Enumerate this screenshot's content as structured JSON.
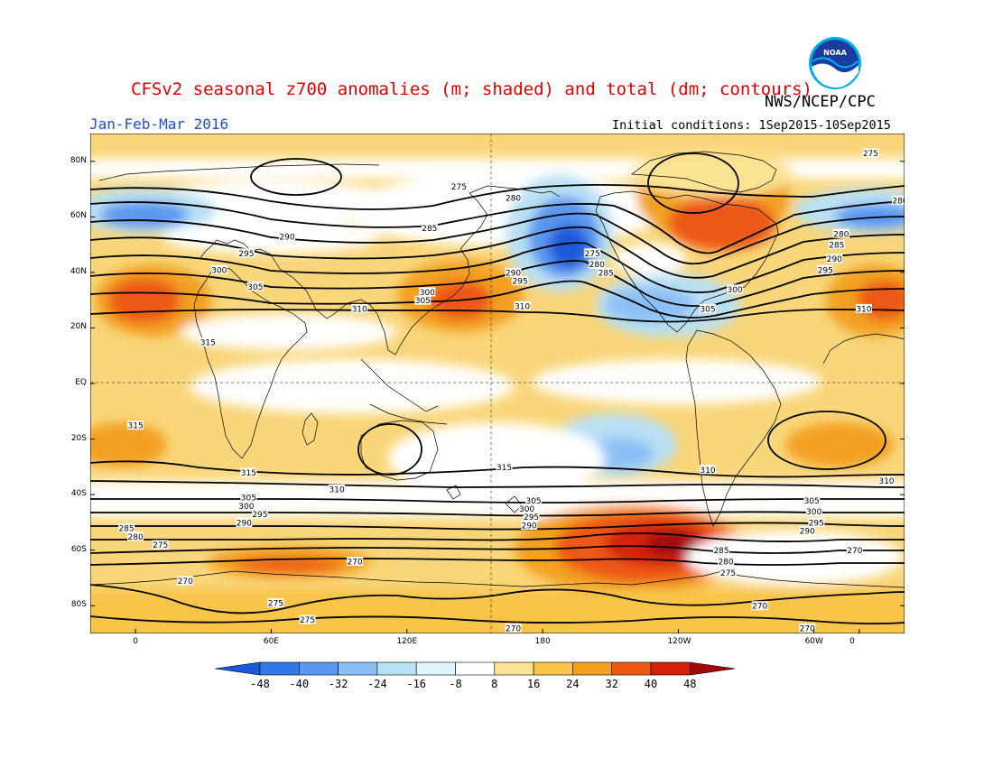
{
  "header": {
    "title": "CFSv2 seasonal z700 anomalies (m; shaded) and total (dm; contours)",
    "agency": "NWS/NCEP/CPC",
    "period": "Jan-Feb-Mar 2016",
    "initial_conditions": "Initial conditions: 1Sep2015-10Sep2015",
    "logo_text": "NOAA"
  },
  "map": {
    "lat_labels": [
      "80N",
      "60N",
      "40N",
      "20N",
      "EQ",
      "20S",
      "40S",
      "60S",
      "80S"
    ],
    "lon_labels": [
      "0",
      "60E",
      "120E",
      "180",
      "120W",
      "60W",
      "0"
    ],
    "contour_labels": [
      {
        "text": "275",
        "lon": -35,
        "lat": 83
      },
      {
        "text": "275",
        "lon": 143,
        "lat": 71
      },
      {
        "text": "280",
        "lon": 167,
        "lat": 67
      },
      {
        "text": "280",
        "lon": -22,
        "lat": 66
      },
      {
        "text": "285",
        "lon": 130,
        "lat": 56
      },
      {
        "text": "290",
        "lon": 67,
        "lat": 53
      },
      {
        "text": "295",
        "lon": 49,
        "lat": 47
      },
      {
        "text": "300",
        "lon": 37,
        "lat": 41
      },
      {
        "text": "305",
        "lon": 53,
        "lat": 35
      },
      {
        "text": "310",
        "lon": 99,
        "lat": 27
      },
      {
        "text": "315",
        "lon": 32,
        "lat": 15
      },
      {
        "text": "300",
        "lon": 129,
        "lat": 33
      },
      {
        "text": "305",
        "lon": 127,
        "lat": 30
      },
      {
        "text": "290",
        "lon": 167,
        "lat": 40
      },
      {
        "text": "295",
        "lon": 170,
        "lat": 37
      },
      {
        "text": "310",
        "lon": 171,
        "lat": 28
      },
      {
        "text": "275",
        "lon": -158,
        "lat": 47
      },
      {
        "text": "280",
        "lon": -156,
        "lat": 43
      },
      {
        "text": "285",
        "lon": -152,
        "lat": 40
      },
      {
        "text": "300",
        "lon": -95,
        "lat": 34
      },
      {
        "text": "305",
        "lon": -107,
        "lat": 27
      },
      {
        "text": "310",
        "lon": -38,
        "lat": 27
      },
      {
        "text": "280",
        "lon": -48,
        "lat": 54
      },
      {
        "text": "285",
        "lon": -50,
        "lat": 50
      },
      {
        "text": "290",
        "lon": -51,
        "lat": 45
      },
      {
        "text": "295",
        "lon": -55,
        "lat": 41
      },
      {
        "text": "315",
        "lon": 0,
        "lat": -15
      },
      {
        "text": "315",
        "lon": 163,
        "lat": -30
      },
      {
        "text": "315",
        "lon": 50,
        "lat": -32
      },
      {
        "text": "310",
        "lon": -107,
        "lat": -31
      },
      {
        "text": "310",
        "lon": 89,
        "lat": -38
      },
      {
        "text": "310",
        "lon": -28,
        "lat": -35
      },
      {
        "text": "305",
        "lon": 50,
        "lat": -41
      },
      {
        "text": "300",
        "lon": 49,
        "lat": -44
      },
      {
        "text": "295",
        "lon": 55,
        "lat": -47
      },
      {
        "text": "290",
        "lon": 48,
        "lat": -50
      },
      {
        "text": "285",
        "lon": -4,
        "lat": -52
      },
      {
        "text": "280",
        "lon": 0,
        "lat": -55
      },
      {
        "text": "275",
        "lon": 11,
        "lat": -58
      },
      {
        "text": "305",
        "lon": 176,
        "lat": -42
      },
      {
        "text": "300",
        "lon": 173,
        "lat": -45
      },
      {
        "text": "295",
        "lon": 175,
        "lat": -48
      },
      {
        "text": "290",
        "lon": 174,
        "lat": -51
      },
      {
        "text": "305",
        "lon": -61,
        "lat": -42
      },
      {
        "text": "300",
        "lon": -60,
        "lat": -46
      },
      {
        "text": "295",
        "lon": -59,
        "lat": -50
      },
      {
        "text": "290",
        "lon": -63,
        "lat": -53
      },
      {
        "text": "285",
        "lon": -101,
        "lat": -60
      },
      {
        "text": "280",
        "lon": -99,
        "lat": -64
      },
      {
        "text": "275",
        "lon": -98,
        "lat": -68
      },
      {
        "text": "270",
        "lon": -42,
        "lat": -60
      },
      {
        "text": "270",
        "lon": 97,
        "lat": -64
      },
      {
        "text": "270",
        "lon": 22,
        "lat": -71
      },
      {
        "text": "275",
        "lon": 62,
        "lat": -79
      },
      {
        "text": "275",
        "lon": 76,
        "lat": -85
      },
      {
        "text": "270",
        "lon": -84,
        "lat": -80
      },
      {
        "text": "270",
        "lon": 167,
        "lat": -88
      },
      {
        "text": "270",
        "lon": -63,
        "lat": -88
      }
    ]
  },
  "colorbar": {
    "labels": [
      "-48",
      "-40",
      "-32",
      "-24",
      "-16",
      "-8",
      "8",
      "16",
      "24",
      "32",
      "40",
      "48"
    ],
    "colors": [
      "#1a5ad8",
      "#3378e8",
      "#5a97f0",
      "#8cc0f5",
      "#b5e2f5",
      "#def5fb",
      "#ffffff",
      "#fce494",
      "#f8c548",
      "#f3a020",
      "#ec5812",
      "#d42008",
      "#a00808"
    ]
  },
  "colors": {
    "title": "#e00000",
    "period": "#2050d0"
  }
}
